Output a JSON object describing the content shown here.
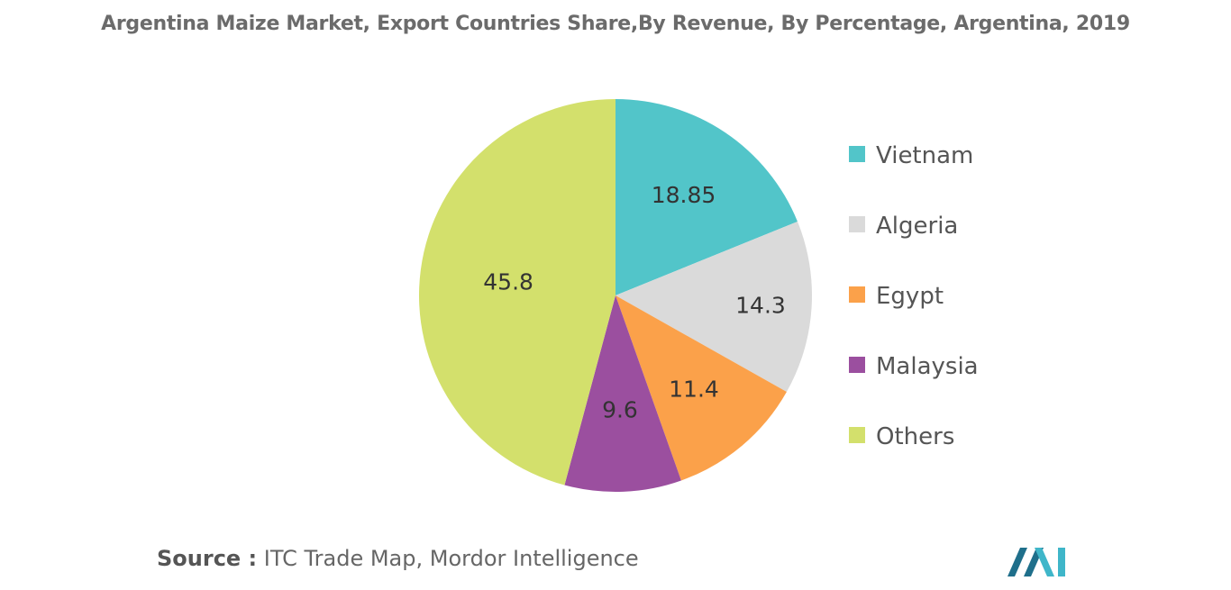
{
  "chart_data": {
    "type": "pie",
    "title": "Argentina Maize Market, Export Countries Share,By Revenue, By Percentage, Argentina, 2019",
    "slices": [
      {
        "name": "Vietnam",
        "value": 18.85,
        "label": "18.85",
        "color": "#52c5c9"
      },
      {
        "name": "Algeria",
        "value": 14.3,
        "label": "14.3",
        "color": "#dadada"
      },
      {
        "name": "Egypt",
        "value": 11.4,
        "label": "11.4",
        "color": "#fba14a"
      },
      {
        "name": "Malaysia",
        "value": 9.6,
        "label": "9.6",
        "color": "#9b4f9f"
      },
      {
        "name": "Others",
        "value": 45.8,
        "label": "45.8",
        "color": "#d3e06c"
      }
    ],
    "legend_position": "right",
    "start": "top, clockwise"
  },
  "source": {
    "prefix": "Source :",
    "text": " ITC Trade Map, Mordor Intelligence"
  },
  "logo": {
    "colors": [
      "#1f6f8b",
      "#3fb6c9"
    ],
    "icon": "mordor-intelligence-logo"
  }
}
